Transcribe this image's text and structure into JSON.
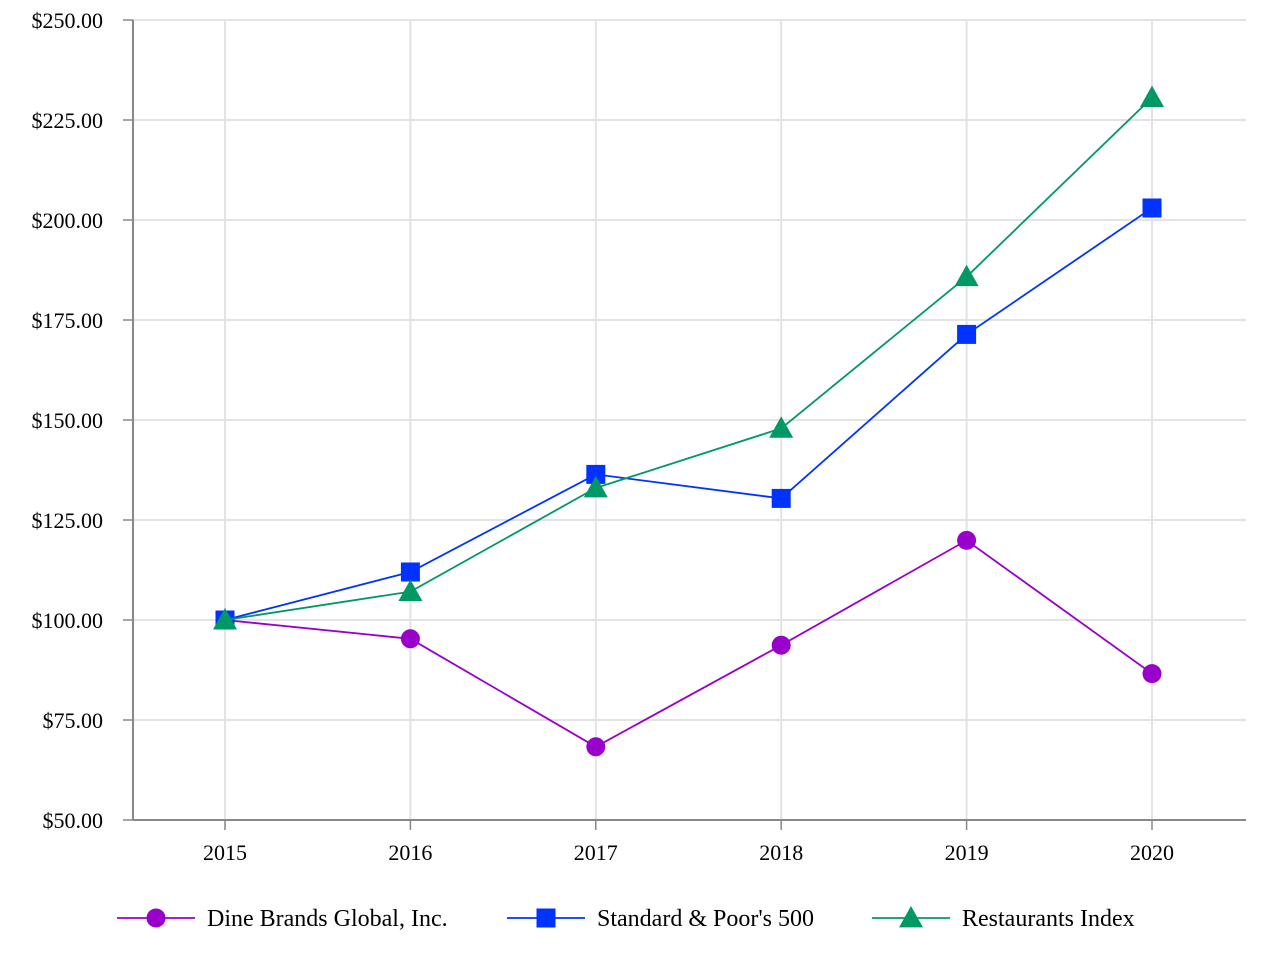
{
  "chart_data": {
    "type": "line",
    "x": [
      "2015",
      "2016",
      "2017",
      "2018",
      "2019",
      "2020"
    ],
    "ylim": [
      50,
      250
    ],
    "yticks": [
      50,
      75,
      100,
      125,
      150,
      175,
      200,
      225,
      250
    ],
    "ytick_labels": [
      "$50.00",
      "$75.00",
      "$100.00",
      "$125.00",
      "$150.00",
      "$175.00",
      "$200.00",
      "$225.00",
      "$250.00"
    ],
    "grid": true,
    "legend_position": "bottom",
    "series": [
      {
        "name": "Dine Brands Global, Inc.",
        "values": [
          100.0,
          95.3,
          68.3,
          93.7,
          119.9,
          86.6
        ],
        "color": "#9900cc",
        "marker": "circle"
      },
      {
        "name": "Standard & Poor's 500",
        "values": [
          100.0,
          112.0,
          136.4,
          130.4,
          171.4,
          203.0
        ],
        "color": "#0033ff",
        "marker": "square"
      },
      {
        "name": "Restaurants Index",
        "values": [
          100.0,
          107.1,
          133.0,
          147.9,
          185.8,
          230.6
        ],
        "color": "#009966",
        "marker": "triangle"
      }
    ]
  }
}
